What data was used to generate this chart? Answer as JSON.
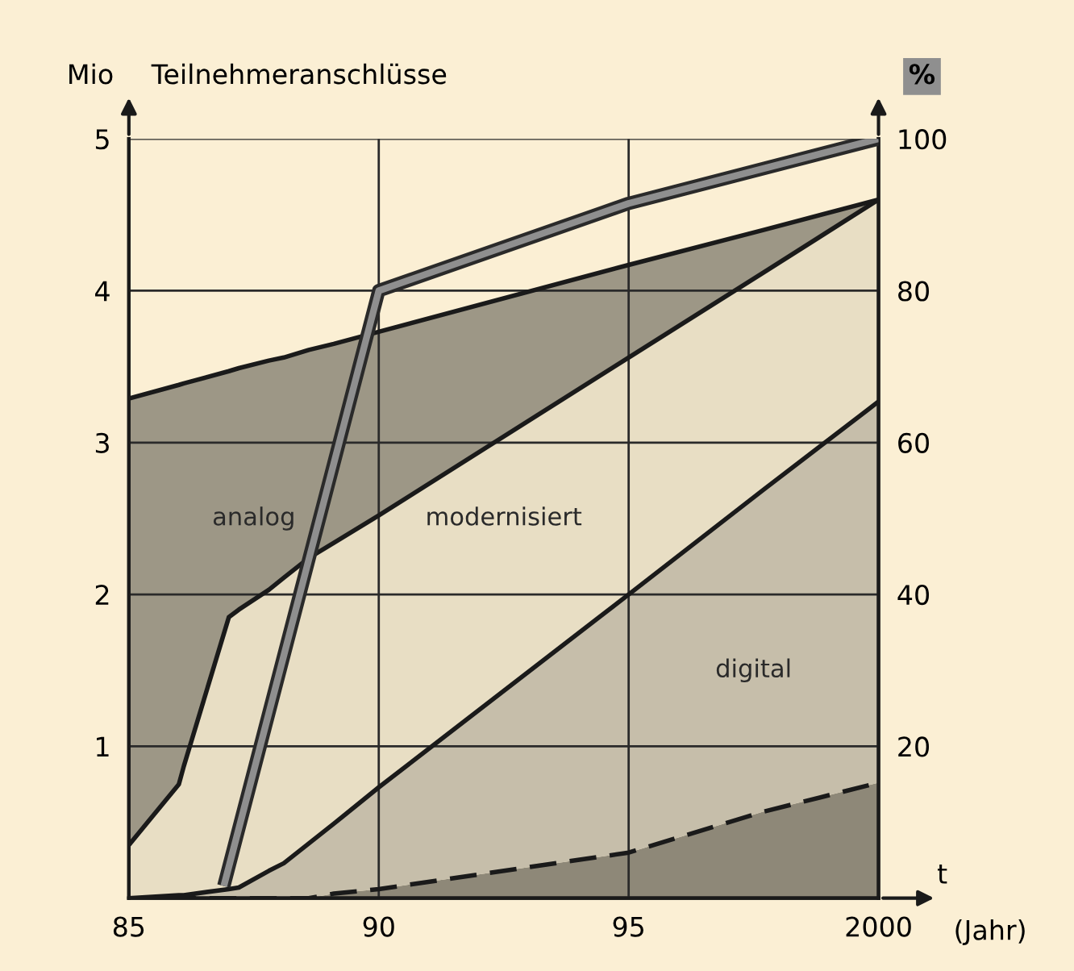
{
  "chart_data": {
    "type": "area",
    "stacked": true,
    "title": "Teilnehmeranschlüsse",
    "ylabel": "Mio",
    "y2label": "%",
    "xlabel": "t",
    "annotations": [
      "(Jahr)"
    ],
    "xlim": [
      1985,
      2000
    ],
    "xticks": [
      {
        "value": 1985,
        "label": "85"
      },
      {
        "value": 1990,
        "label": "90"
      },
      {
        "value": 1995,
        "label": "95"
      },
      2000
    ],
    "ylim": [
      0,
      5
    ],
    "yticks": [
      1,
      2,
      3,
      4,
      5
    ],
    "y2lim": [
      0,
      100
    ],
    "y2ticks": [
      20,
      40,
      60,
      80,
      100
    ],
    "grid": true,
    "legend": false,
    "x": [
      1985,
      1986,
      1986.1,
      1987,
      1987.2,
      1987.8,
      1988.1,
      1988.6,
      1989.1,
      1990,
      1995,
      1997.7,
      2000
    ],
    "series": [
      {
        "color": "#8e8878",
        "line_style": "dashed",
        "values": [
          0,
          0,
          0,
          0,
          0,
          0,
          0,
          0,
          0.03,
          0.06,
          0.3,
          0.57,
          0.76
        ]
      },
      {
        "name": "digital",
        "color": "#c6beaa",
        "values": [
          0,
          0.02,
          0.02,
          0.06,
          0.07,
          0.18,
          0.23,
          0.36,
          0.46,
          0.67,
          1.7,
          2.12,
          2.51
        ]
      },
      {
        "name": "modernisiert",
        "color": "#e8dec4",
        "values": [
          0.35,
          0.73,
          0.85,
          1.79,
          1.83,
          1.85,
          1.88,
          1.88,
          1.85,
          1.79,
          1.56,
          1.43,
          1.33
        ]
      },
      {
        "name": "analog",
        "color": "#9d9786",
        "values": [
          2.94,
          2.63,
          2.52,
          1.62,
          1.59,
          1.51,
          1.45,
          1.37,
          1.31,
          1.21,
          0.61,
          0.28,
          0
        ]
      },
      {
        "type": "line",
        "axis": "y2",
        "color": "#8f8f8f",
        "x": [
          1986.9,
          1990,
          1995,
          2000
        ],
        "values": [
          1.6,
          80,
          91.5,
          100
        ]
      }
    ]
  }
}
